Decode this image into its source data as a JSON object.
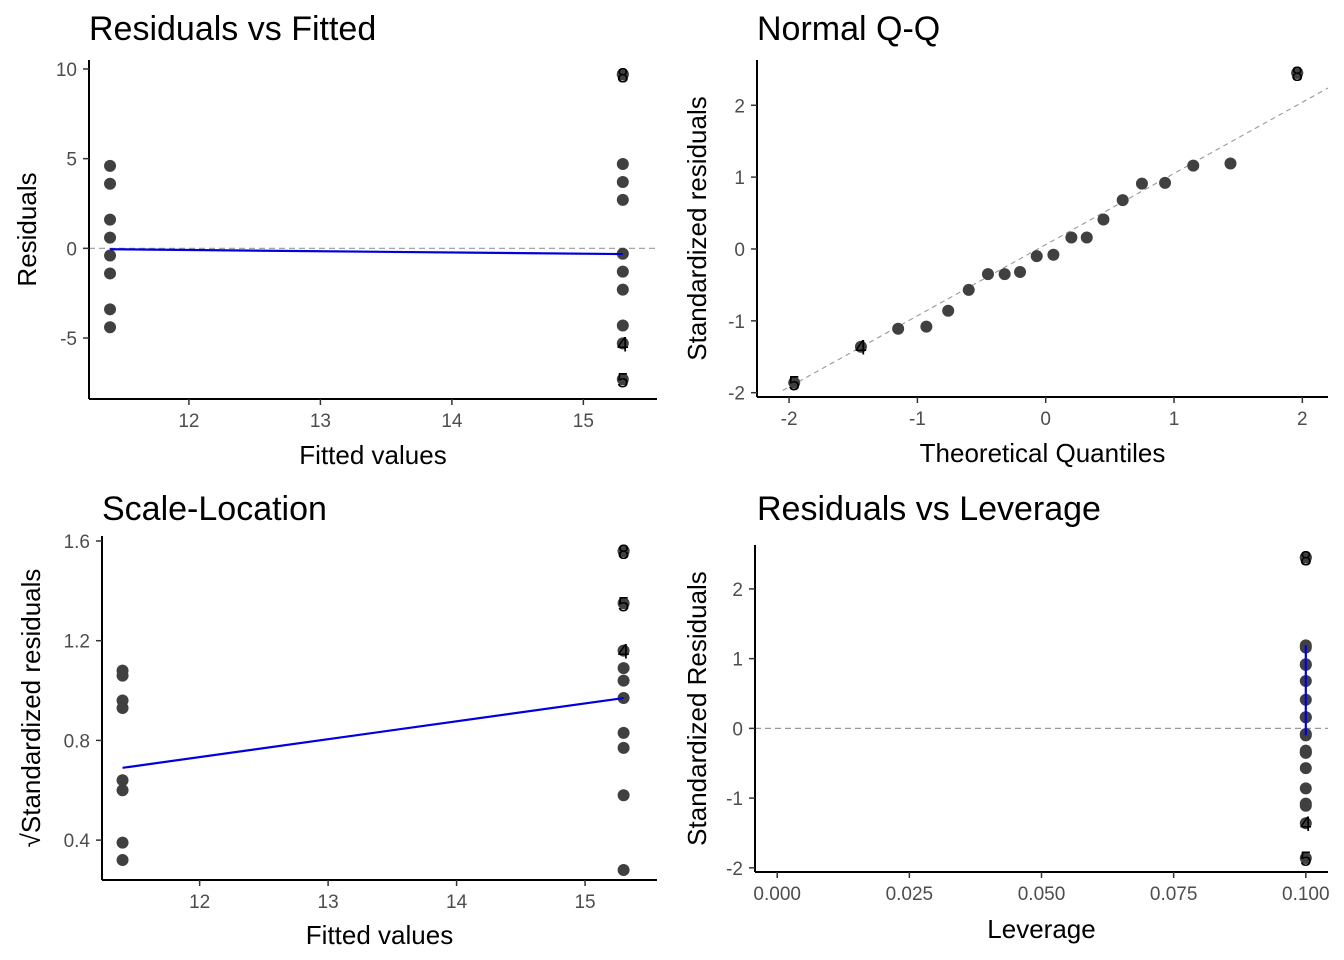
{
  "chart_data": [
    {
      "id": "rvf",
      "type": "scatter",
      "title": "Residuals vs Fitted",
      "xlabel": "Fitted values",
      "ylabel": "Residuals",
      "xlim": [
        11.24,
        15.56
      ],
      "ylim": [
        -8.4,
        10.5
      ],
      "xticks": [
        12,
        13,
        14,
        15
      ],
      "yticks": [
        -5,
        0,
        5,
        10
      ],
      "reference_line": 0,
      "points": [
        [
          11.4,
          4.6
        ],
        [
          11.4,
          3.6
        ],
        [
          11.4,
          1.6
        ],
        [
          11.4,
          0.6
        ],
        [
          11.4,
          -0.4
        ],
        [
          11.4,
          -1.4
        ],
        [
          11.4,
          -3.4
        ],
        [
          11.4,
          -4.4
        ],
        [
          15.3,
          4.7
        ],
        [
          15.3,
          3.7
        ],
        [
          15.3,
          2.7
        ],
        [
          15.3,
          -0.3
        ],
        [
          15.3,
          -1.3
        ],
        [
          15.3,
          -2.3
        ],
        [
          15.3,
          -4.3
        ]
      ],
      "labelled_points": [
        {
          "label": "3",
          "x": 15.3,
          "y": 9.7
        },
        {
          "label": "8",
          "x": 15.3,
          "y": 9.7
        },
        {
          "label": "4",
          "x": 15.3,
          "y": -5.3
        },
        {
          "label": "5",
          "x": 15.3,
          "y": -7.3
        }
      ],
      "smooth_line": [
        [
          11.4,
          -0.05
        ],
        [
          15.3,
          -0.32
        ]
      ]
    },
    {
      "id": "qq",
      "type": "scatter",
      "title": "Normal Q-Q",
      "xlabel": "Theoretical Quantiles",
      "ylabel": "Standardized residuals",
      "xlim": [
        -2.25,
        2.2
      ],
      "ylim": [
        -2.06,
        2.63
      ],
      "xticks": [
        -2,
        -1,
        0,
        1,
        2
      ],
      "yticks": [
        -2,
        -1,
        0,
        1,
        2
      ],
      "qq_line": [
        [
          -2.05,
          -1.97
        ],
        [
          2.2,
          2.24
        ]
      ],
      "points": [
        [
          -1.15,
          -1.11
        ],
        [
          -0.93,
          -1.08
        ],
        [
          -0.76,
          -0.86
        ],
        [
          -0.6,
          -0.57
        ],
        [
          -0.45,
          -0.35
        ],
        [
          -0.32,
          -0.35
        ],
        [
          -0.2,
          -0.32
        ],
        [
          -0.07,
          -0.1
        ],
        [
          0.06,
          -0.08
        ],
        [
          0.2,
          0.16
        ],
        [
          0.32,
          0.16
        ],
        [
          0.45,
          0.41
        ],
        [
          0.6,
          0.68
        ],
        [
          0.75,
          0.91
        ],
        [
          0.93,
          0.92
        ],
        [
          1.15,
          1.16
        ],
        [
          1.44,
          1.19
        ]
      ],
      "labelled_points": [
        {
          "label": "3",
          "x": 1.96,
          "y": 2.45
        },
        {
          "label": "8",
          "x": 1.96,
          "y": 2.45
        },
        {
          "label": "4",
          "x": -1.44,
          "y": -1.36
        },
        {
          "label": "5",
          "x": -1.96,
          "y": -1.86
        }
      ]
    },
    {
      "id": "sl",
      "type": "scatter",
      "title": "Scale-Location",
      "xlabel": "Fitted values",
      "ylabel": "√Standardized residuals",
      "xlim": [
        11.24,
        15.56
      ],
      "ylim": [
        0.24,
        1.62
      ],
      "xticks": [
        12,
        13,
        14,
        15
      ],
      "yticks": [
        0.4,
        0.8,
        1.2,
        1.6
      ],
      "ytick_labels": [
        "0.4",
        "0.8",
        "1.2",
        "1.6"
      ],
      "points": [
        [
          11.4,
          1.08
        ],
        [
          11.4,
          1.06
        ],
        [
          11.4,
          0.96
        ],
        [
          11.4,
          0.93
        ],
        [
          11.4,
          0.64
        ],
        [
          11.4,
          0.6
        ],
        [
          11.4,
          0.39
        ],
        [
          11.4,
          0.32
        ],
        [
          15.3,
          1.09
        ],
        [
          15.3,
          1.04
        ],
        [
          15.3,
          0.97
        ],
        [
          15.3,
          0.83
        ],
        [
          15.3,
          0.77
        ],
        [
          15.3,
          0.58
        ],
        [
          15.3,
          0.28
        ]
      ],
      "labelled_points": [
        {
          "label": "3",
          "x": 15.3,
          "y": 1.56
        },
        {
          "label": "8",
          "x": 15.3,
          "y": 1.56
        },
        {
          "label": "5",
          "x": 15.3,
          "y": 1.35
        },
        {
          "label": "4",
          "x": 15.3,
          "y": 1.16
        }
      ],
      "smooth_line": [
        [
          11.4,
          0.69
        ],
        [
          15.3,
          0.97
        ]
      ]
    },
    {
      "id": "rvl",
      "type": "scatter",
      "title": "Residuals vs Leverage",
      "xlabel": "Leverage",
      "ylabel": "Standardized Residuals",
      "xlim": [
        -0.0042,
        0.1042
      ],
      "ylim": [
        -2.06,
        2.63
      ],
      "xticks": [
        0,
        0.025,
        0.05,
        0.075,
        0.1
      ],
      "xtick_labels": [
        "0.000",
        "0.025",
        "0.050",
        "0.075",
        "0.100"
      ],
      "yticks": [
        -2,
        -1,
        0,
        1,
        2
      ],
      "reference_line": 0,
      "points": [
        [
          0.1,
          1.19
        ],
        [
          0.1,
          1.16
        ],
        [
          0.1,
          0.92
        ],
        [
          0.1,
          0.91
        ],
        [
          0.1,
          0.68
        ],
        [
          0.1,
          0.41
        ],
        [
          0.1,
          0.16
        ],
        [
          0.1,
          0.16
        ],
        [
          0.1,
          -0.08
        ],
        [
          0.1,
          -0.1
        ],
        [
          0.1,
          -0.32
        ],
        [
          0.1,
          -0.35
        ],
        [
          0.1,
          -0.35
        ],
        [
          0.1,
          -0.57
        ],
        [
          0.1,
          -0.86
        ],
        [
          0.1,
          -1.08
        ],
        [
          0.1,
          -1.11
        ]
      ],
      "labelled_points": [
        {
          "label": "3",
          "x": 0.1,
          "y": 2.45
        },
        {
          "label": "8",
          "x": 0.1,
          "y": 2.45
        },
        {
          "label": "4",
          "x": 0.1,
          "y": -1.36
        },
        {
          "label": "5",
          "x": 0.1,
          "y": -1.86
        }
      ],
      "smooth_line": [
        [
          0.1,
          1.19
        ],
        [
          0.1,
          -0.1
        ]
      ]
    }
  ],
  "colors": {
    "points": "#404040",
    "smooth": "#0000dd",
    "reference": "#999999",
    "axis": "#000000",
    "tick_text": "#4d4d4d"
  }
}
